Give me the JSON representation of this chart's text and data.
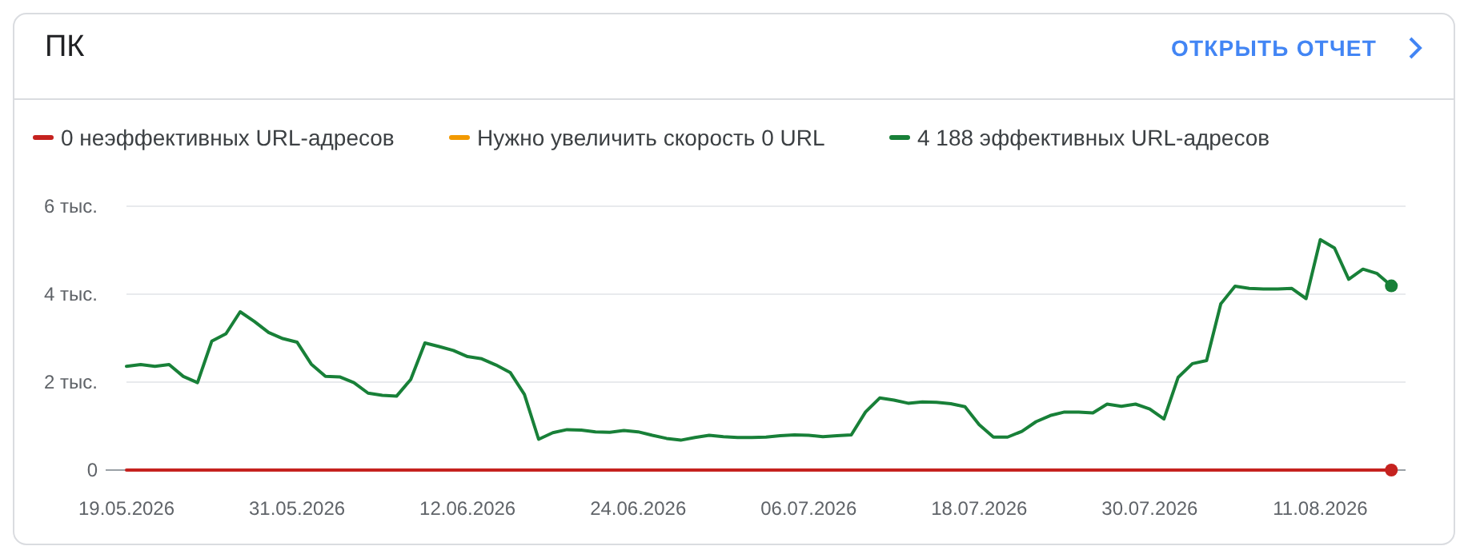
{
  "chart_data": {
    "type": "line",
    "title": "ПК",
    "annotations": [
      "ОТКРЫТЬ ОТЧЕТ"
    ],
    "x": [
      "2026-05-19",
      "2026-05-20",
      "2026-05-21",
      "2026-05-22",
      "2026-05-23",
      "2026-05-24",
      "2026-05-25",
      "2026-05-26",
      "2026-05-27",
      "2026-05-28",
      "2026-05-29",
      "2026-05-30",
      "2026-05-31",
      "2026-06-01",
      "2026-06-02",
      "2026-06-03",
      "2026-06-04",
      "2026-06-05",
      "2026-06-06",
      "2026-06-07",
      "2026-06-08",
      "2026-06-09",
      "2026-06-10",
      "2026-06-11",
      "2026-06-12",
      "2026-06-13",
      "2026-06-14",
      "2026-06-15",
      "2026-06-16",
      "2026-06-17",
      "2026-06-18",
      "2026-06-19",
      "2026-06-20",
      "2026-06-21",
      "2026-06-22",
      "2026-06-23",
      "2026-06-24",
      "2026-06-25",
      "2026-06-26",
      "2026-06-27",
      "2026-06-28",
      "2026-06-29",
      "2026-06-30",
      "2026-07-01",
      "2026-07-02",
      "2026-07-03",
      "2026-07-04",
      "2026-07-05",
      "2026-07-06",
      "2026-07-07",
      "2026-07-08",
      "2026-07-09",
      "2026-07-10",
      "2026-07-11",
      "2026-07-12",
      "2026-07-13",
      "2026-07-14",
      "2026-07-15",
      "2026-07-16",
      "2026-07-17",
      "2026-07-18",
      "2026-07-19",
      "2026-07-20",
      "2026-07-21",
      "2026-07-22",
      "2026-07-23",
      "2026-07-24",
      "2026-07-25",
      "2026-07-26",
      "2026-07-27",
      "2026-07-28",
      "2026-07-29",
      "2026-07-30",
      "2026-07-31",
      "2026-08-01",
      "2026-08-02",
      "2026-08-03",
      "2026-08-04",
      "2026-08-05",
      "2026-08-06",
      "2026-08-07",
      "2026-08-08",
      "2026-08-09",
      "2026-08-10",
      "2026-08-11",
      "2026-08-12",
      "2026-08-13",
      "2026-08-14",
      "2026-08-15",
      "2026-08-16"
    ],
    "series": [
      {
        "name": "0 неэффективных URL-адресов",
        "color": "#c5221f",
        "values": [
          0,
          0,
          0,
          0,
          0,
          0,
          0,
          0,
          0,
          0,
          0,
          0,
          0,
          0,
          0,
          0,
          0,
          0,
          0,
          0,
          0,
          0,
          0,
          0,
          0,
          0,
          0,
          0,
          0,
          0,
          0,
          0,
          0,
          0,
          0,
          0,
          0,
          0,
          0,
          0,
          0,
          0,
          0,
          0,
          0,
          0,
          0,
          0,
          0,
          0,
          0,
          0,
          0,
          0,
          0,
          0,
          0,
          0,
          0,
          0,
          0,
          0,
          0,
          0,
          0,
          0,
          0,
          0,
          0,
          0,
          0,
          0,
          0,
          0,
          0,
          0,
          0,
          0,
          0,
          0,
          0,
          0,
          0,
          0,
          0,
          0,
          0,
          0,
          0,
          0
        ]
      },
      {
        "name": "Нужно увеличить скорость 0 URL",
        "color": "#f29900",
        "values": [
          null,
          null,
          null,
          null,
          null,
          null,
          null,
          null,
          null,
          null,
          null,
          null,
          null,
          null,
          null,
          null,
          null,
          null,
          null,
          null,
          null,
          null,
          null,
          null,
          null,
          null,
          null,
          null,
          null,
          null,
          null,
          null,
          null,
          null,
          null,
          null,
          null,
          null,
          null,
          null,
          null,
          null,
          null,
          null,
          null,
          null,
          null,
          null,
          null,
          null,
          null,
          null,
          null,
          null,
          null,
          null,
          null,
          null,
          null,
          null,
          null,
          null,
          null,
          null,
          null,
          null,
          null,
          null,
          null,
          null,
          null,
          null,
          null,
          null,
          null,
          null,
          null,
          null,
          null,
          null,
          null,
          null,
          null,
          null,
          null,
          null,
          null,
          null,
          null,
          null
        ]
      },
      {
        "name": "4 188 эффективных URL-адресов",
        "color": "#188038",
        "values": [
          2.36,
          2.4,
          2.36,
          2.4,
          2.13,
          1.99,
          2.93,
          3.1,
          3.6,
          3.38,
          3.13,
          2.99,
          2.91,
          2.41,
          2.13,
          2.12,
          1.99,
          1.75,
          1.7,
          1.68,
          2.06,
          2.89,
          2.81,
          2.72,
          2.58,
          2.53,
          2.39,
          2.22,
          1.72,
          0.7,
          0.85,
          0.92,
          0.91,
          0.87,
          0.86,
          0.9,
          0.87,
          0.79,
          0.72,
          0.68,
          0.74,
          0.79,
          0.76,
          0.74,
          0.74,
          0.75,
          0.78,
          0.8,
          0.79,
          0.76,
          0.78,
          0.8,
          1.32,
          1.64,
          1.59,
          1.52,
          1.55,
          1.54,
          1.51,
          1.44,
          1.03,
          0.75,
          0.75,
          0.88,
          1.1,
          1.24,
          1.32,
          1.32,
          1.3,
          1.5,
          1.45,
          1.5,
          1.39,
          1.16,
          2.11,
          2.42,
          2.49,
          3.78,
          4.18,
          4.13,
          4.12,
          4.12,
          4.13,
          3.9,
          5.24,
          5.05,
          4.34,
          4.57,
          4.47,
          4.19
        ]
      }
    ],
    "xlim": [
      "2026-05-19",
      "2026-08-17"
    ],
    "xticks": [
      {
        "value": "2026-05-19",
        "label": "19.05.2026"
      },
      {
        "value": "2026-05-31",
        "label": "31.05.2026"
      },
      {
        "value": "2026-06-12",
        "label": "12.06.2026"
      },
      {
        "value": "2026-06-24",
        "label": "24.06.2026"
      },
      {
        "value": "2026-07-06",
        "label": "06.07.2026"
      },
      {
        "value": "2026-07-18",
        "label": "18.07.2026"
      },
      {
        "value": "2026-07-30",
        "label": "30.07.2026"
      },
      {
        "value": "2026-08-11",
        "label": "11.08.2026"
      }
    ],
    "ylim": [
      0,
      6
    ],
    "yticks": [
      0,
      {
        "value": 2,
        "label": "2 тыс."
      },
      {
        "value": 4,
        "label": "4 тыс."
      },
      {
        "value": 6,
        "label": "6 тыс."
      }
    ],
    "grid": "y",
    "legend": "top",
    "marker": "none",
    "line_style": "solid"
  }
}
